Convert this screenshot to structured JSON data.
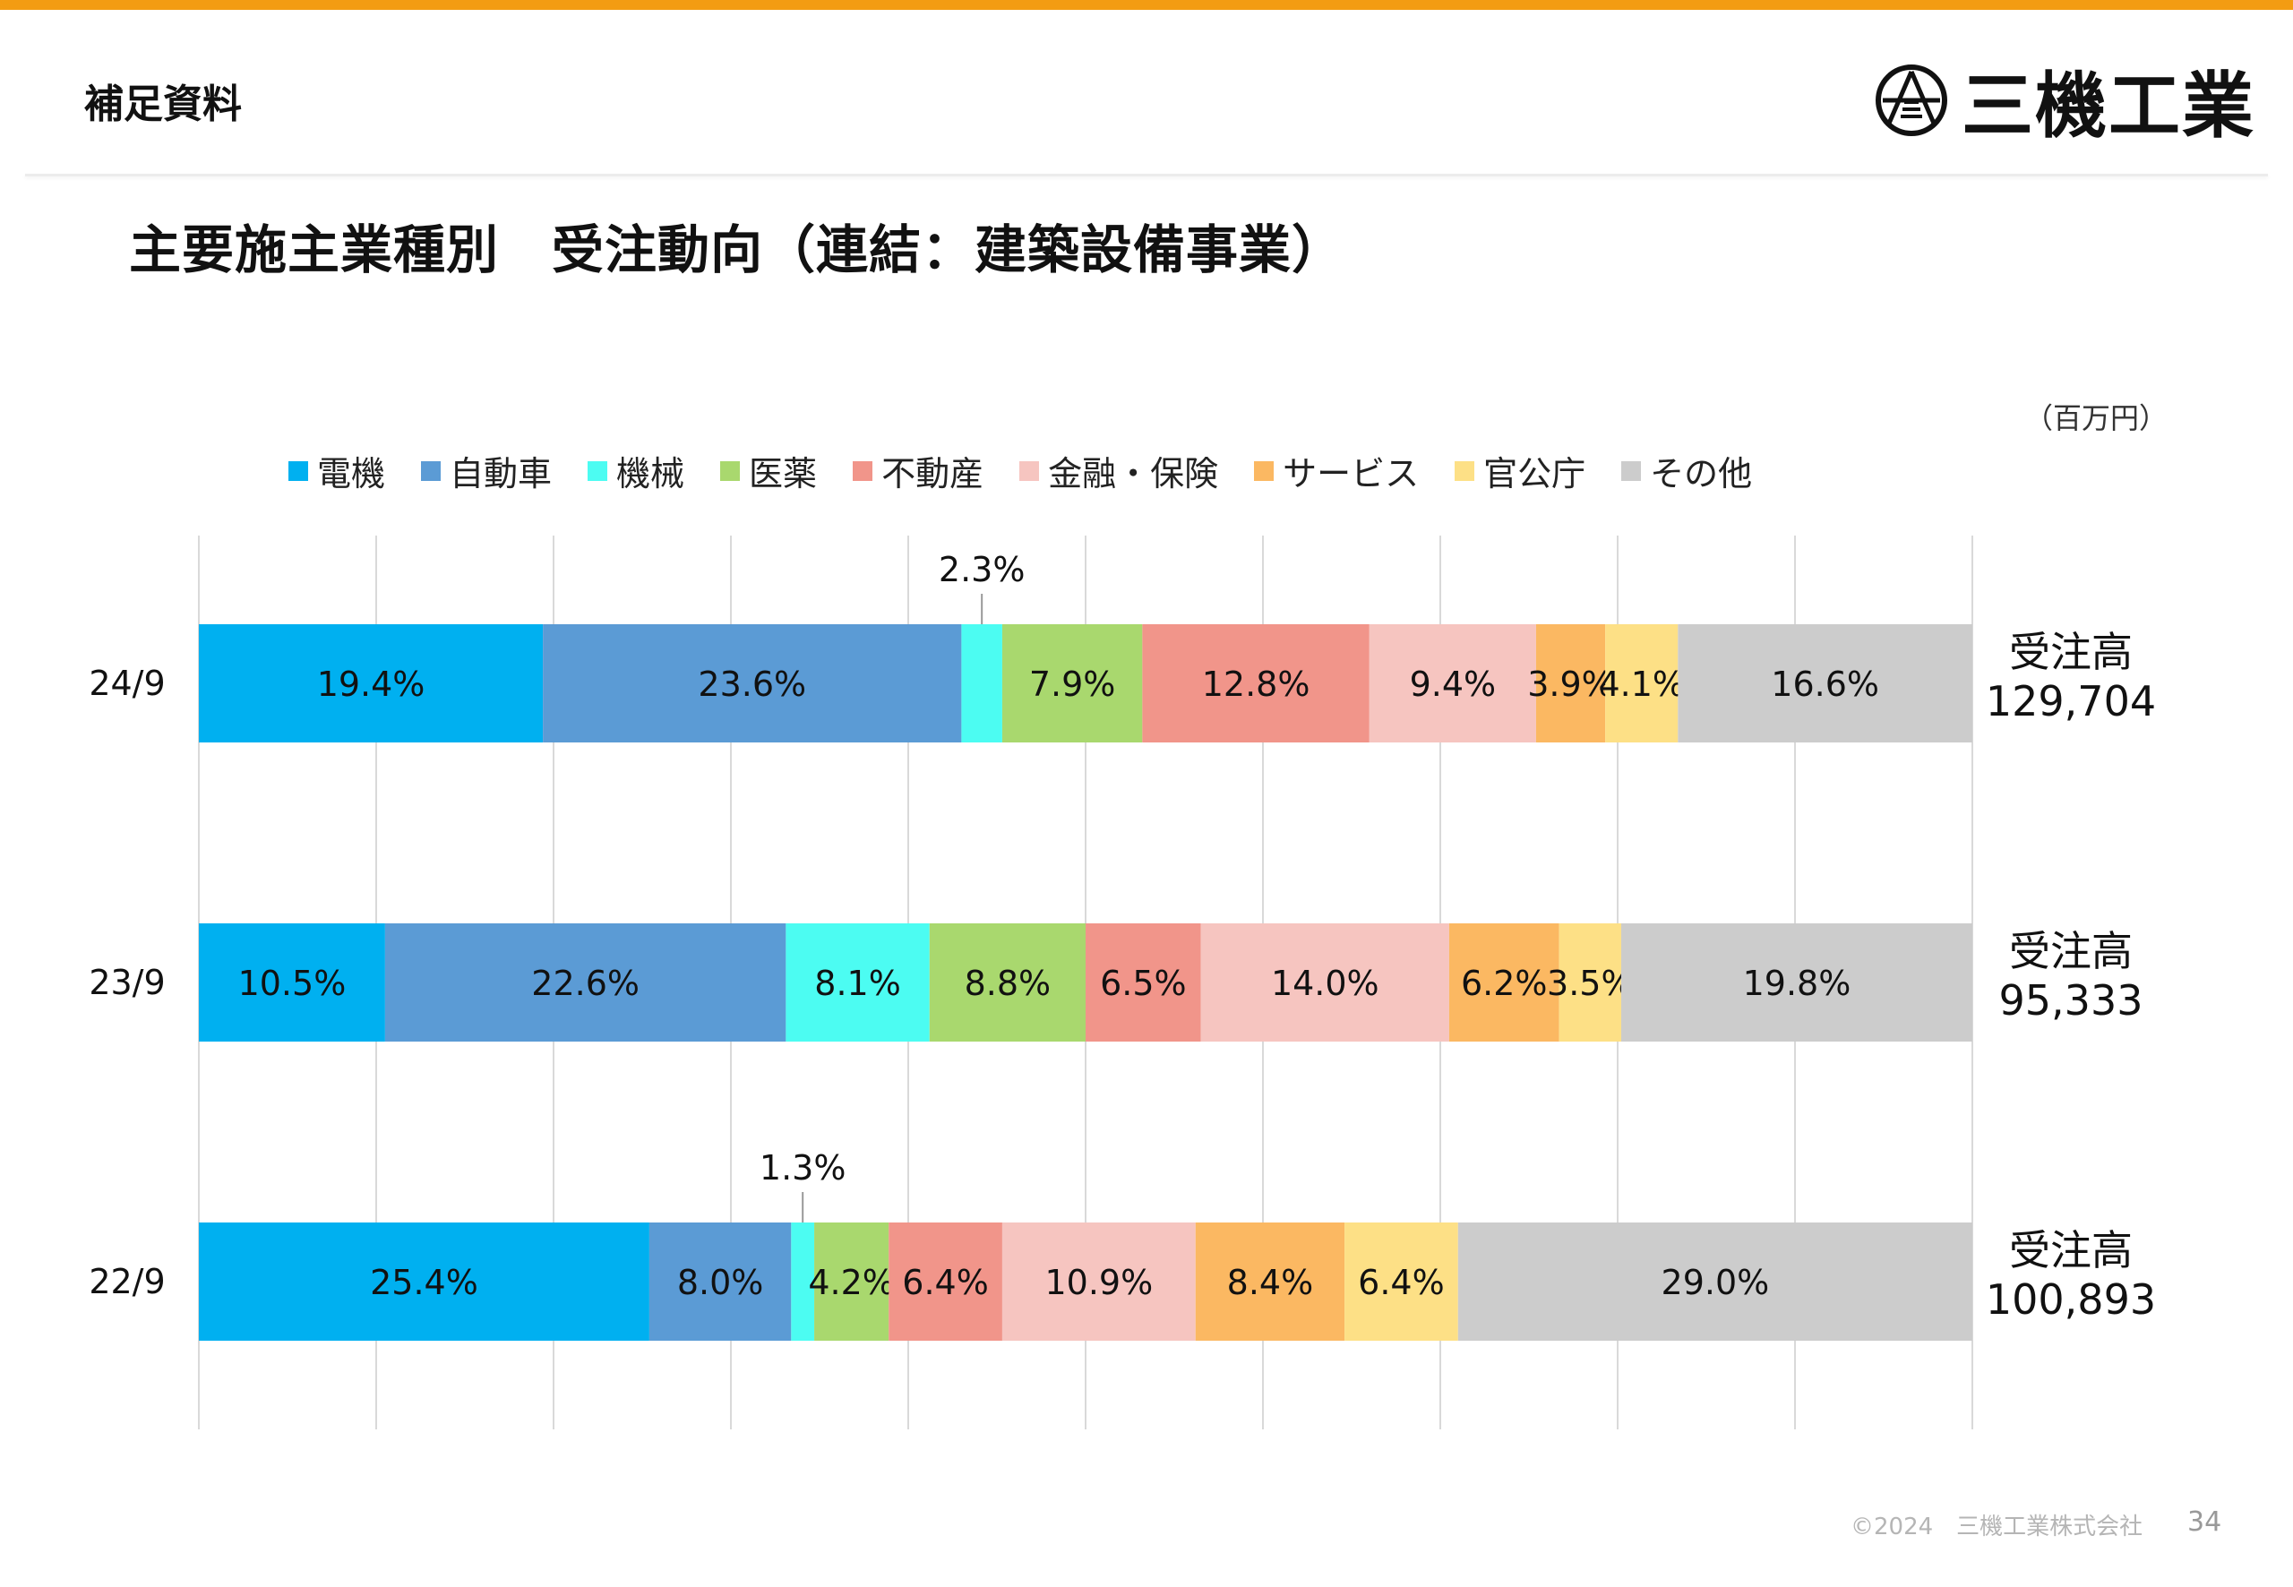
{
  "header": {
    "section_label": "補足資料",
    "logo_text": "三機工業"
  },
  "page_title": "主要施主業種別　受注動向（連結：建築設備事業）",
  "unit_label": "（百万円）",
  "footer": {
    "copyright": "©2024　三機工業株式会社",
    "page_number": "34"
  },
  "chart_data": {
    "type": "bar",
    "orientation": "horizontal",
    "stacked": "100%",
    "categories": [
      "24/9",
      "23/9",
      "22/9"
    ],
    "series": [
      {
        "name": "電機",
        "color": "#00b0f0",
        "values": [
          19.4,
          10.5,
          25.4
        ],
        "labels": [
          "19.4%",
          "10.5%",
          "25.4%"
        ]
      },
      {
        "name": "自動車",
        "color": "#5b9bd5",
        "values": [
          23.6,
          22.6,
          8.0
        ],
        "labels": [
          "23.6%",
          "22.6%",
          "8.0%"
        ]
      },
      {
        "name": "機械",
        "color": "#4cfcf2",
        "values": [
          2.3,
          8.1,
          1.3
        ],
        "labels": [
          "2.3%",
          "8.1%",
          "1.3%"
        ]
      },
      {
        "name": "医薬",
        "color": "#a9d86e",
        "values": [
          7.9,
          8.8,
          4.2
        ],
        "labels": [
          "7.9%",
          "8.8%",
          "4.2%"
        ]
      },
      {
        "name": "不動産",
        "color": "#f1958a",
        "values": [
          12.8,
          6.5,
          6.4
        ],
        "labels": [
          "12.8%",
          "6.5%",
          "6.4%"
        ]
      },
      {
        "name": "金融・保険",
        "color": "#f6c5c0",
        "values": [
          9.4,
          14.0,
          10.9
        ],
        "labels": [
          "9.4%",
          "14.0%",
          "10.9%"
        ]
      },
      {
        "name": "サービス",
        "color": "#fbb862",
        "values": [
          3.9,
          6.2,
          8.4
        ],
        "labels": [
          "3.9%",
          "6.2%",
          "8.4%"
        ]
      },
      {
        "name": "官公庁",
        "color": "#fde086",
        "values": [
          4.1,
          3.5,
          6.4
        ],
        "labels": [
          "4.1%",
          "3.5%",
          "6.4%"
        ]
      },
      {
        "name": "その他",
        "color": "#cccccc",
        "values": [
          16.6,
          19.8,
          29.0
        ],
        "labels": [
          "16.6%",
          "19.8%",
          "29.0%"
        ]
      }
    ],
    "totals": [
      {
        "label": "受注高",
        "value": "129,704"
      },
      {
        "label": "受注高",
        "value": "95,333"
      },
      {
        "label": "受注高",
        "value": "100,893"
      }
    ],
    "xlim": [
      0,
      100
    ],
    "grid": true,
    "legend": "top"
  }
}
